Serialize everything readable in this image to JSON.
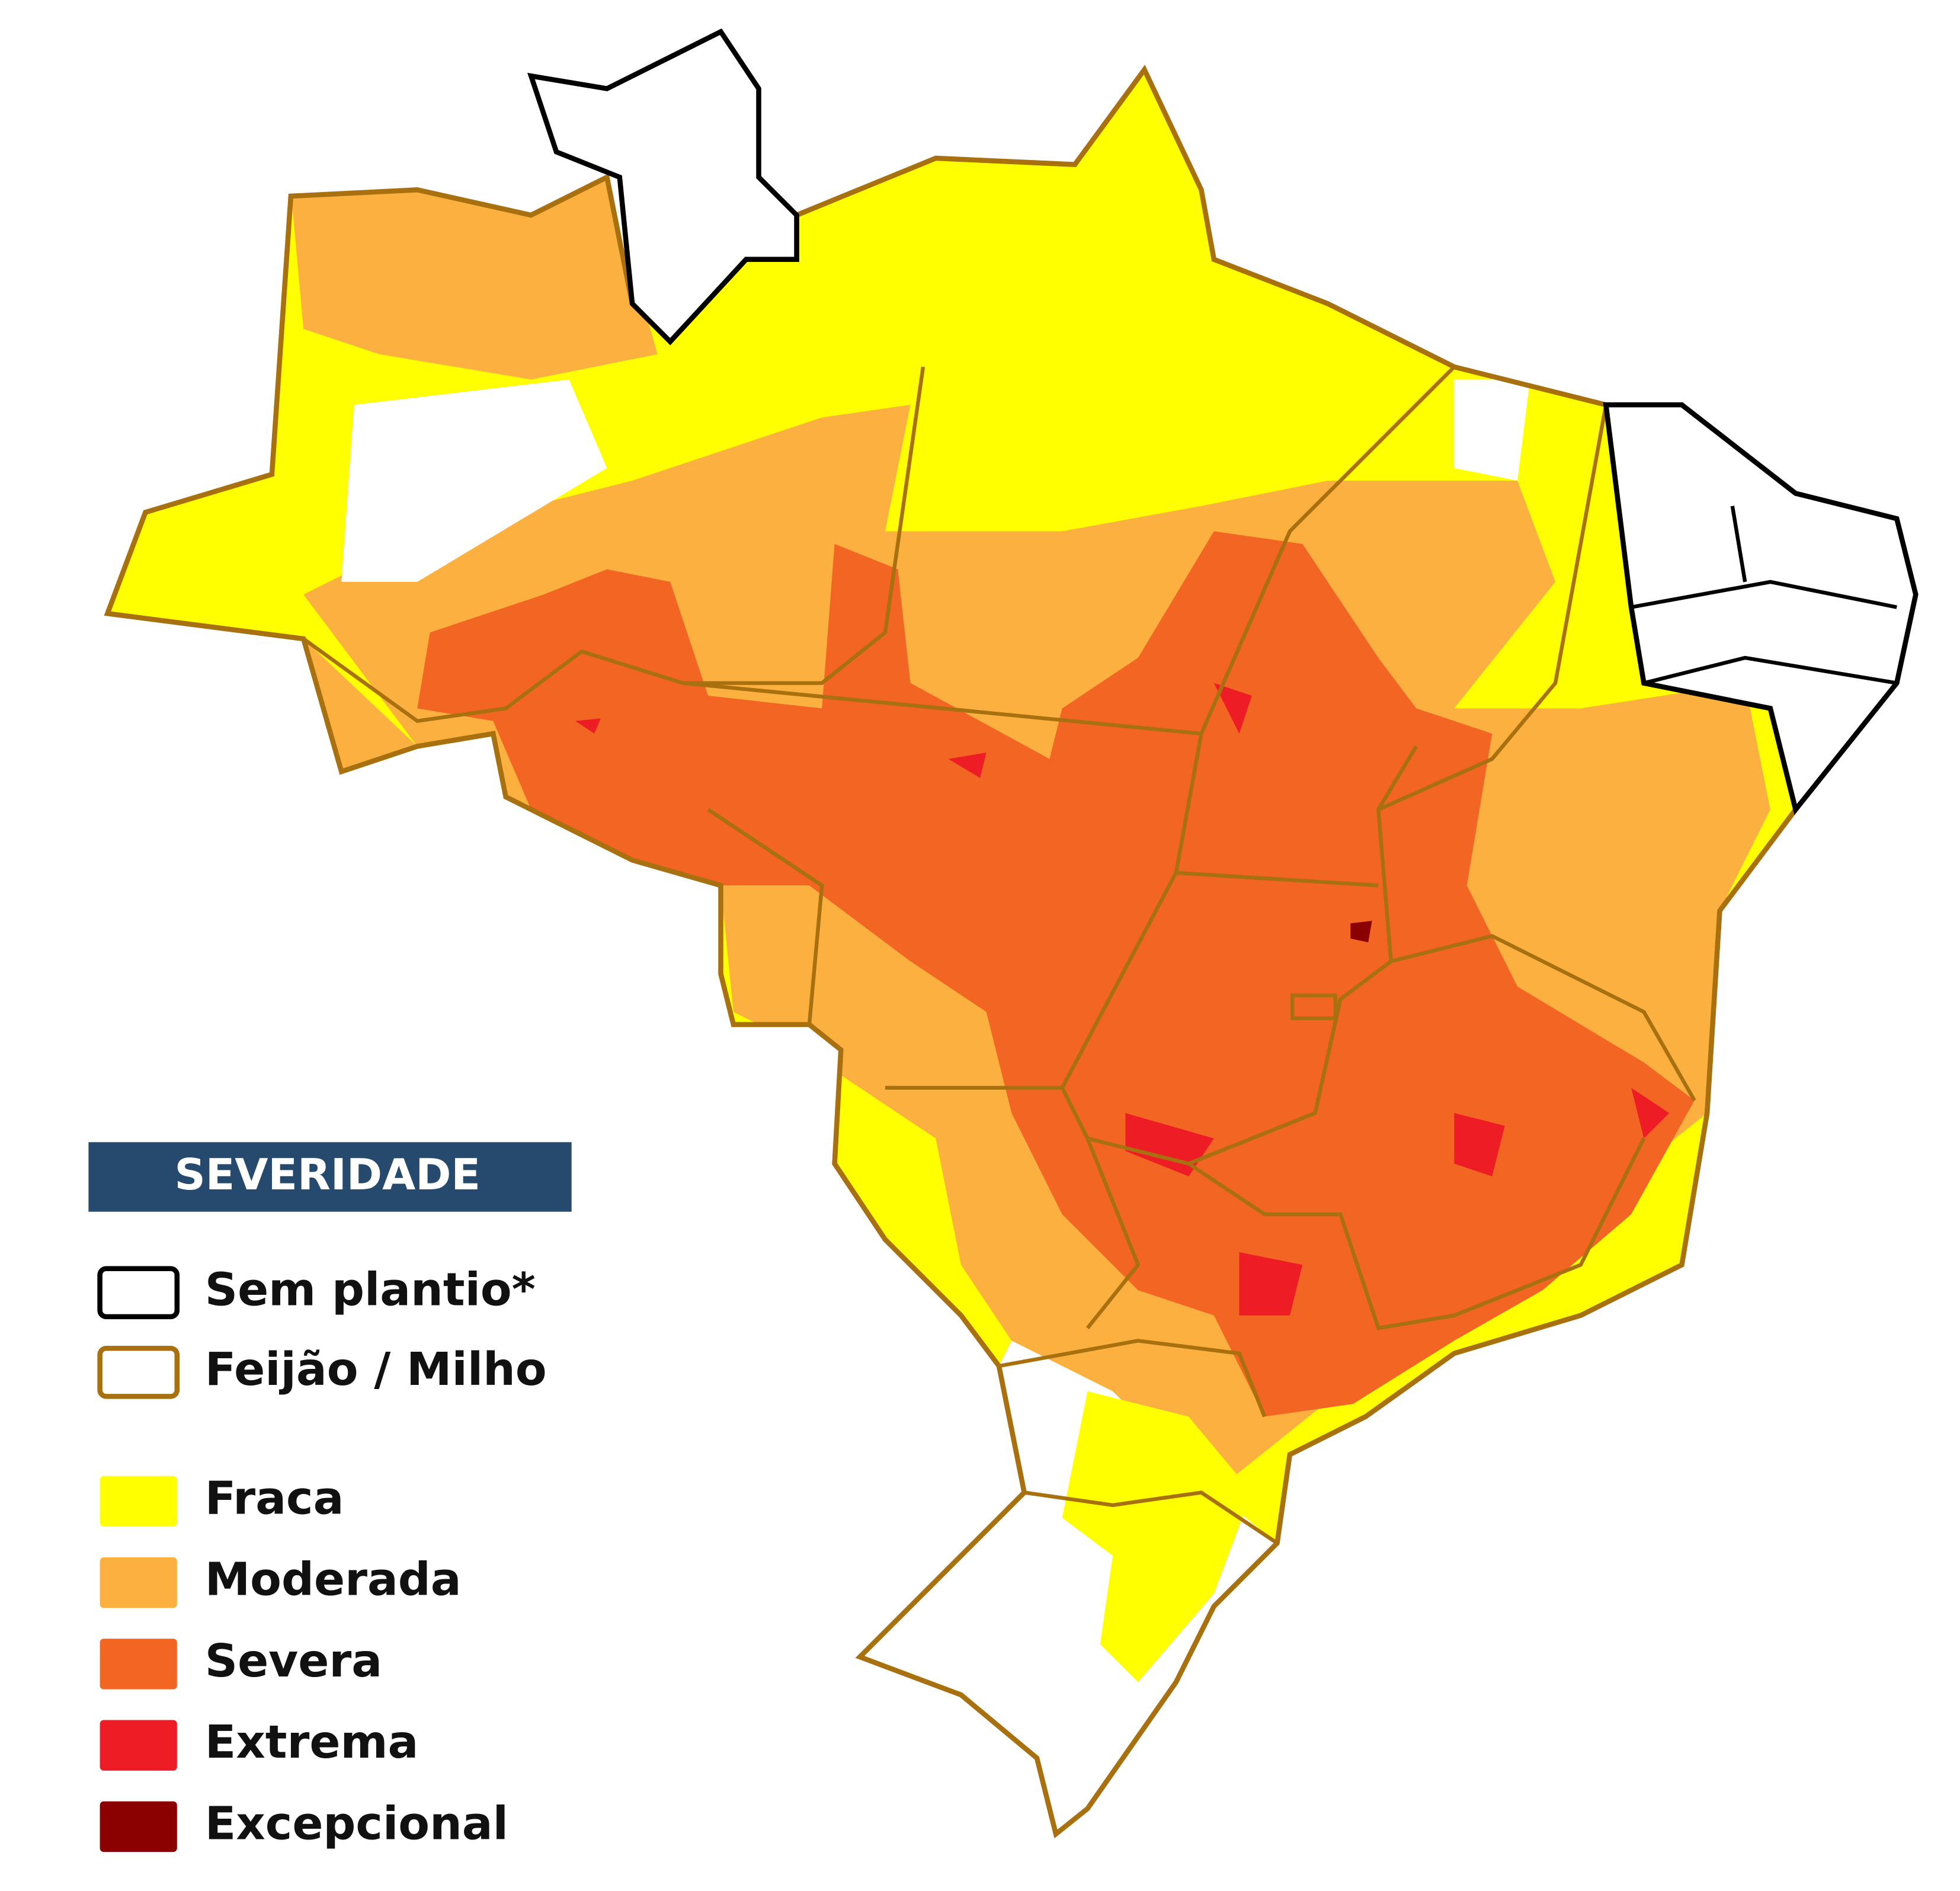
{
  "legend": {
    "title": "SEVERIDADE",
    "outlines": [
      {
        "label": "Sem plantio*",
        "color": "#000000"
      },
      {
        "label": "Feijão / Milho",
        "color": "#a8700f"
      }
    ],
    "levels": [
      {
        "label": "Fraca",
        "color": "#ffff00"
      },
      {
        "label": "Moderada",
        "color": "#fbb040"
      },
      {
        "label": "Severa",
        "color": "#f26522"
      },
      {
        "label": "Extrema",
        "color": "#ee1c25"
      },
      {
        "label": "Excepcional",
        "color": "#8b0000"
      }
    ]
  }
}
